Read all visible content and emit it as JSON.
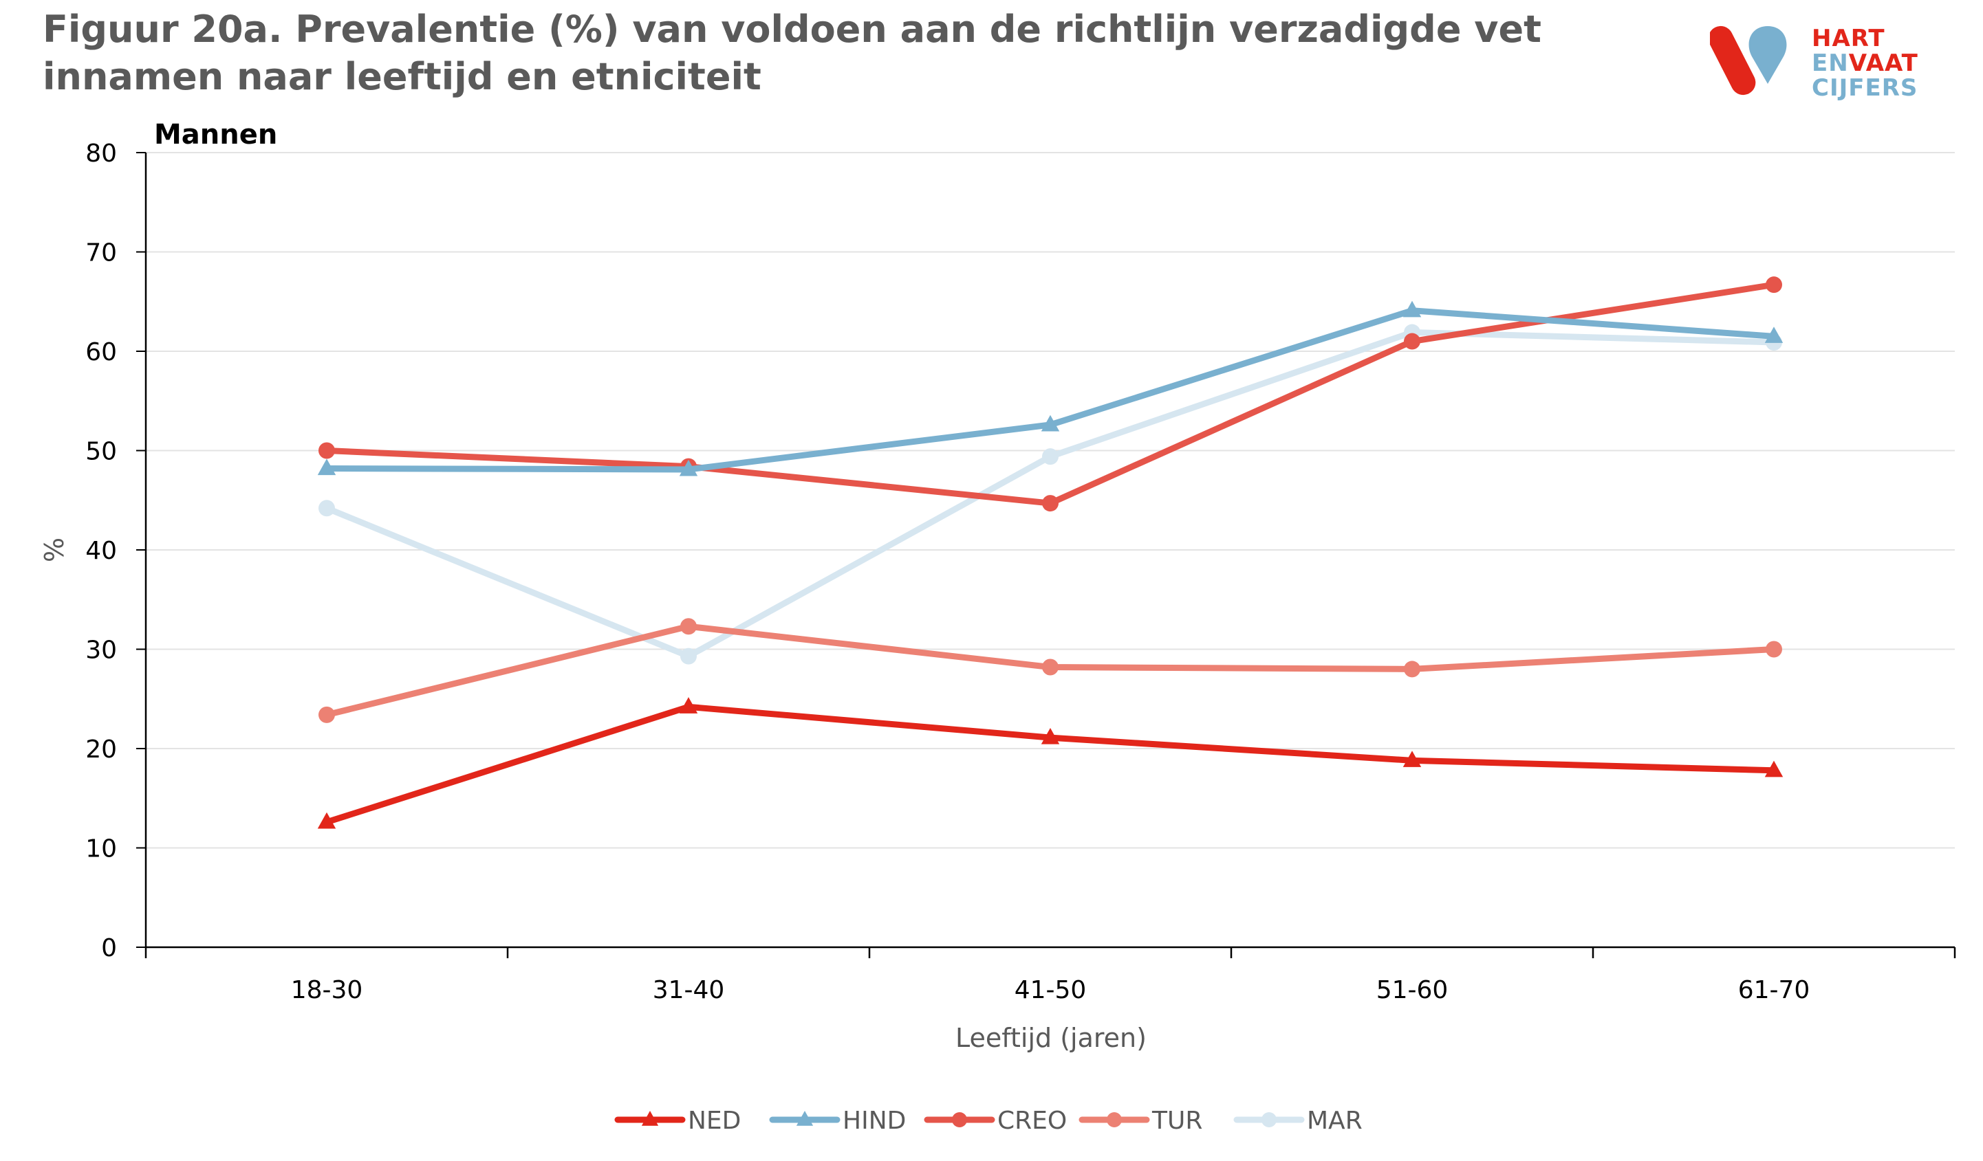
{
  "figure": {
    "title": "Figuur 20a. Prevalentie (%) van  voldoen aan de richtlijn verzadigde vet innamen naar leeftijd en etniciteit"
  },
  "logo": {
    "line1": "HART",
    "line2_a": "EN",
    "line2_b": "VAAT",
    "line3": "CIJFERS"
  },
  "chart_data": {
    "type": "line",
    "panel_title": "Mannen",
    "xlabel": "Leeftijd (jaren)",
    "ylabel": "%",
    "ylim": [
      0,
      80
    ],
    "yticks": [
      0,
      10,
      20,
      30,
      40,
      50,
      60,
      70,
      80
    ],
    "grid": true,
    "legend_position": "bottom",
    "categories": [
      "18-30",
      "31-40",
      "41-50",
      "51-60",
      "61-70"
    ],
    "series": [
      {
        "name": "MAR",
        "color": "#d6e6f0",
        "marker": "circle",
        "values": [
          44.2,
          29.3,
          49.4,
          61.9,
          60.9
        ]
      },
      {
        "name": "TUR",
        "color": "#ec8173",
        "marker": "circle",
        "values": [
          23.4,
          32.3,
          28.2,
          28.0,
          30.0
        ]
      },
      {
        "name": "CREO",
        "color": "#e5554a",
        "marker": "circle",
        "values": [
          50.0,
          48.4,
          44.7,
          61.0,
          66.7
        ]
      },
      {
        "name": "HIND",
        "color": "#79b0cf",
        "marker": "triangle",
        "values": [
          48.2,
          48.1,
          52.6,
          64.1,
          61.5
        ]
      },
      {
        "name": "NED",
        "color": "#e2261a",
        "marker": "triangle",
        "values": [
          12.6,
          24.2,
          21.1,
          18.8,
          17.8
        ]
      }
    ],
    "legend_order": [
      "NED",
      "HIND",
      "CREO",
      "TUR",
      "MAR"
    ]
  }
}
